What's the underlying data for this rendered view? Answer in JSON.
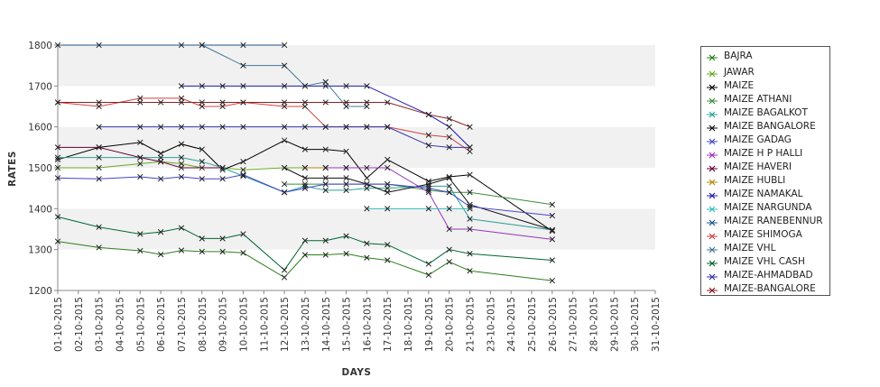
{
  "chart_data": {
    "type": "line",
    "xlabel": "DAYS",
    "ylabel": "RATES",
    "ylim": [
      1200,
      1800
    ],
    "yticks": [
      1200,
      1300,
      1400,
      1500,
      1600,
      1700,
      1800
    ],
    "grid": "alternating horizontal bands",
    "legend_position": "right",
    "categories": [
      "01-10-2015",
      "02-10-2015",
      "03-10-2015",
      "04-10-2015",
      "05-10-2015",
      "06-10-2015",
      "07-10-2015",
      "08-10-2015",
      "09-10-2015",
      "10-10-2015",
      "11-10-2015",
      "12-10-2015",
      "13-10-2015",
      "14-10-2015",
      "15-10-2015",
      "16-10-2015",
      "17-10-2015",
      "18-10-2015",
      "19-10-2015",
      "20-10-2015",
      "21-10-2015",
      "23-10-2015",
      "24-10-2015",
      "25-10-2015",
      "26-10-2015",
      "27-10-2015",
      "28-10-2015",
      "29-10-2015",
      "30-10-2015",
      "31-10-2015"
    ],
    "series": [
      {
        "name": "BAJRA",
        "color": "#2e7d1c",
        "points": [
          [
            0,
            1320
          ],
          [
            2,
            1305
          ],
          [
            4,
            1297
          ],
          [
            5,
            1288
          ],
          [
            6,
            1298
          ],
          [
            7,
            1295
          ],
          [
            8,
            1295
          ],
          [
            9,
            1292
          ],
          [
            11,
            1232
          ],
          [
            12,
            1287
          ],
          [
            13,
            1287
          ],
          [
            14,
            1290
          ],
          [
            15,
            1280
          ],
          [
            16,
            1274
          ],
          [
            18,
            1238
          ],
          [
            19,
            1270
          ],
          [
            20,
            1248
          ],
          [
            24,
            1224
          ]
        ]
      },
      {
        "name": "JAWAR",
        "color": "#66aa22",
        "points": [
          [
            0,
            1500
          ],
          [
            2,
            1500
          ],
          [
            4,
            1510
          ],
          [
            5,
            1515
          ],
          [
            6,
            1510
          ],
          [
            7,
            1500
          ],
          [
            8,
            1500
          ],
          [
            9,
            1495
          ],
          [
            11,
            1500
          ],
          [
            12,
            1500
          ],
          [
            13,
            1500
          ],
          [
            14,
            1500
          ]
        ]
      },
      {
        "name": "MAIZE",
        "color": "#000000",
        "points": [
          [
            0,
            1520
          ],
          [
            2,
            1550
          ],
          [
            4,
            1562
          ],
          [
            5,
            1535
          ],
          [
            6,
            1558
          ],
          [
            7,
            1545
          ],
          [
            8,
            1495
          ],
          [
            9,
            1515
          ],
          [
            11,
            1567
          ],
          [
            12,
            1545
          ],
          [
            13,
            1545
          ],
          [
            14,
            1540
          ],
          [
            15,
            1475
          ],
          [
            16,
            1520
          ],
          [
            18,
            1467
          ],
          [
            19,
            1478
          ],
          [
            20,
            1483
          ],
          [
            24,
            1345
          ]
        ]
      },
      {
        "name": "MAIZE ATHANI",
        "color": "#3c8c3c",
        "points": [
          [
            11,
            1460
          ],
          [
            12,
            1460
          ],
          [
            13,
            1460
          ],
          [
            14,
            1460
          ],
          [
            15,
            1460
          ],
          [
            16,
            1460
          ],
          [
            18,
            1445
          ],
          [
            19,
            1440
          ],
          [
            20,
            1440
          ],
          [
            24,
            1410
          ]
        ]
      },
      {
        "name": "MAIZE BAGALKOT",
        "color": "#2aa198",
        "points": [
          [
            0,
            1525
          ],
          [
            2,
            1525
          ],
          [
            4,
            1525
          ],
          [
            5,
            1525
          ],
          [
            6,
            1525
          ],
          [
            7,
            1515
          ],
          [
            8,
            1500
          ],
          [
            9,
            1480
          ],
          [
            11,
            1440
          ],
          [
            12,
            1455
          ],
          [
            13,
            1445
          ],
          [
            14,
            1445
          ],
          [
            15,
            1450
          ],
          [
            16,
            1450
          ],
          [
            18,
            1455
          ],
          [
            19,
            1455
          ],
          [
            20,
            1375
          ],
          [
            24,
            1348
          ]
        ]
      },
      {
        "name": "MAIZE BANGALORE",
        "color": "#111111",
        "points": [
          [
            11,
            1500
          ],
          [
            12,
            1475
          ],
          [
            13,
            1475
          ],
          [
            14,
            1475
          ],
          [
            15,
            1460
          ],
          [
            16,
            1440
          ],
          [
            18,
            1460
          ],
          [
            19,
            1475
          ],
          [
            20,
            1410
          ],
          [
            24,
            1348
          ]
        ]
      },
      {
        "name": "MAIZE GADAG",
        "color": "#4444cc",
        "points": [
          [
            0,
            1475
          ],
          [
            2,
            1473
          ],
          [
            4,
            1478
          ],
          [
            5,
            1473
          ],
          [
            6,
            1478
          ],
          [
            7,
            1473
          ],
          [
            8,
            1473
          ],
          [
            9,
            1483
          ],
          [
            11,
            1440
          ],
          [
            12,
            1450
          ],
          [
            13,
            1460
          ],
          [
            14,
            1460
          ],
          [
            15,
            1460
          ],
          [
            16,
            1460
          ],
          [
            18,
            1450
          ],
          [
            19,
            1440
          ],
          [
            20,
            1405
          ],
          [
            24,
            1383
          ]
        ]
      },
      {
        "name": "MAIZE H P HALLI",
        "color": "#9933bb",
        "points": [
          [
            13,
            1500
          ],
          [
            14,
            1500
          ],
          [
            15,
            1500
          ],
          [
            16,
            1500
          ],
          [
            18,
            1440
          ],
          [
            19,
            1350
          ],
          [
            20,
            1350
          ],
          [
            24,
            1325
          ]
        ]
      },
      {
        "name": "MAIZE HAVERI",
        "color": "#660033",
        "points": [
          [
            0,
            1550
          ],
          [
            2,
            1550
          ],
          [
            4,
            1525
          ],
          [
            5,
            1515
          ],
          [
            6,
            1500
          ],
          [
            8,
            1500
          ]
        ]
      },
      {
        "name": "MAIZE HUBLI",
        "color": "#b8860b",
        "points": [
          [
            12,
            1500
          ],
          [
            13,
            1500
          ]
        ]
      },
      {
        "name": "MAIZE NAMAKAL",
        "color": "#1a1aa6",
        "points": [
          [
            6,
            1700
          ],
          [
            7,
            1700
          ],
          [
            8,
            1700
          ],
          [
            9,
            1700
          ],
          [
            11,
            1700
          ],
          [
            12,
            1700
          ],
          [
            13,
            1700
          ],
          [
            14,
            1700
          ],
          [
            15,
            1700
          ],
          [
            18,
            1630
          ],
          [
            19,
            1600
          ],
          [
            20,
            1550
          ]
        ]
      },
      {
        "name": "MAIZE NARGUNDA",
        "color": "#33bbbb",
        "points": [
          [
            15,
            1400
          ],
          [
            16,
            1400
          ],
          [
            18,
            1400
          ],
          [
            19,
            1400
          ],
          [
            20,
            1400
          ]
        ]
      },
      {
        "name": "MAIZE RANEBENNUR",
        "color": "#225588",
        "points": [
          [
            0,
            1800
          ],
          [
            2,
            1800
          ],
          [
            6,
            1800
          ],
          [
            7,
            1800
          ],
          [
            9,
            1800
          ],
          [
            11,
            1800
          ]
        ]
      },
      {
        "name": "MAIZE SHIMOGA",
        "color": "#cc4444",
        "points": [
          [
            0,
            1660
          ],
          [
            2,
            1650
          ],
          [
            4,
            1670
          ],
          [
            6,
            1670
          ],
          [
            7,
            1650
          ],
          [
            8,
            1650
          ],
          [
            9,
            1660
          ],
          [
            11,
            1650
          ],
          [
            12,
            1650
          ],
          [
            13,
            1600
          ],
          [
            14,
            1600
          ],
          [
            15,
            1600
          ],
          [
            16,
            1600
          ],
          [
            18,
            1580
          ],
          [
            19,
            1575
          ],
          [
            20,
            1540
          ]
        ]
      },
      {
        "name": "MAIZE VHL",
        "color": "#447799",
        "points": [
          [
            7,
            1800
          ],
          [
            9,
            1750
          ],
          [
            11,
            1750
          ],
          [
            12,
            1700
          ],
          [
            13,
            1710
          ],
          [
            14,
            1650
          ],
          [
            15,
            1650
          ]
        ]
      },
      {
        "name": "MAIZE VHL CASH",
        "color": "#006633",
        "points": [
          [
            0,
            1380
          ],
          [
            2,
            1355
          ],
          [
            4,
            1338
          ],
          [
            5,
            1343
          ],
          [
            6,
            1353
          ],
          [
            7,
            1327
          ],
          [
            8,
            1327
          ],
          [
            9,
            1338
          ],
          [
            11,
            1250
          ],
          [
            12,
            1322
          ],
          [
            13,
            1322
          ],
          [
            14,
            1333
          ],
          [
            15,
            1315
          ],
          [
            16,
            1312
          ],
          [
            18,
            1265
          ],
          [
            19,
            1300
          ],
          [
            20,
            1290
          ],
          [
            24,
            1274
          ]
        ]
      },
      {
        "name": "MAIZE-AHMADBAD",
        "color": "#3333aa",
        "points": [
          [
            2,
            1600
          ],
          [
            4,
            1600
          ],
          [
            5,
            1600
          ],
          [
            6,
            1600
          ],
          [
            7,
            1600
          ],
          [
            8,
            1600
          ],
          [
            9,
            1600
          ],
          [
            11,
            1600
          ],
          [
            12,
            1600
          ],
          [
            13,
            1600
          ],
          [
            14,
            1600
          ],
          [
            15,
            1600
          ],
          [
            16,
            1600
          ],
          [
            18,
            1555
          ],
          [
            19,
            1550
          ],
          [
            20,
            1550
          ]
        ]
      },
      {
        "name": "MAIZE-BANGALORE",
        "color": "#882222",
        "points": [
          [
            0,
            1660
          ],
          [
            2,
            1660
          ],
          [
            4,
            1660
          ],
          [
            5,
            1660
          ],
          [
            6,
            1660
          ],
          [
            7,
            1660
          ],
          [
            8,
            1660
          ],
          [
            9,
            1660
          ],
          [
            11,
            1660
          ],
          [
            12,
            1660
          ],
          [
            13,
            1660
          ],
          [
            14,
            1660
          ],
          [
            15,
            1660
          ],
          [
            16,
            1660
          ],
          [
            18,
            1630
          ],
          [
            19,
            1620
          ],
          [
            20,
            1600
          ]
        ]
      }
    ]
  }
}
